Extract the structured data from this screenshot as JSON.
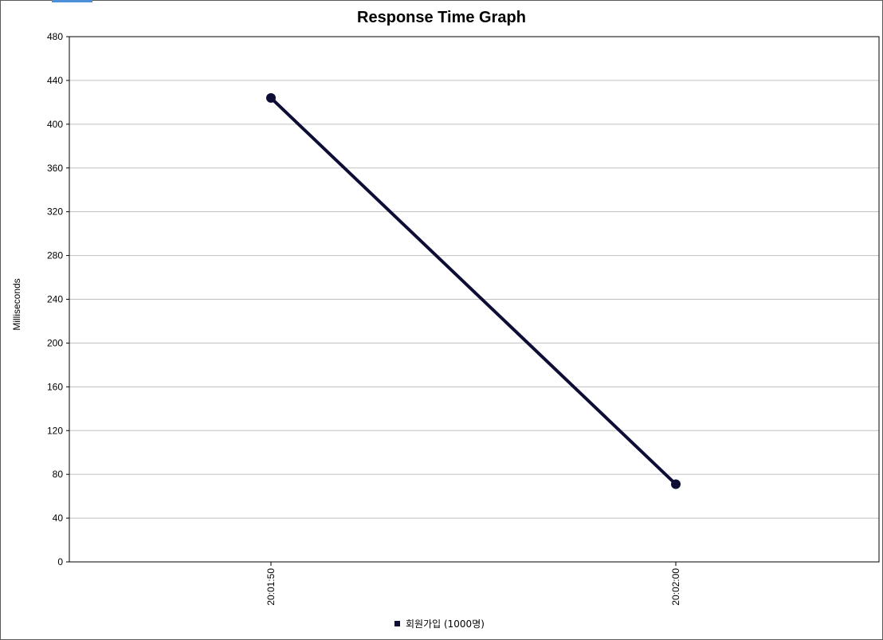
{
  "chart_data": {
    "type": "line",
    "title": "Response Time Graph",
    "xlabel": "",
    "ylabel": "Milliseconds",
    "x": [
      "20:01:50",
      "20:02:00"
    ],
    "y_ticks": [
      "0",
      "40",
      "80",
      "120",
      "160",
      "200",
      "240",
      "280",
      "320",
      "360",
      "400",
      "440",
      "480"
    ],
    "ylim": [
      0,
      480
    ],
    "grid": true,
    "legend_position": "bottom",
    "series": [
      {
        "name": "회원가입 (1000명)",
        "color": "#0d0d36",
        "values": [
          424,
          71
        ]
      }
    ]
  }
}
